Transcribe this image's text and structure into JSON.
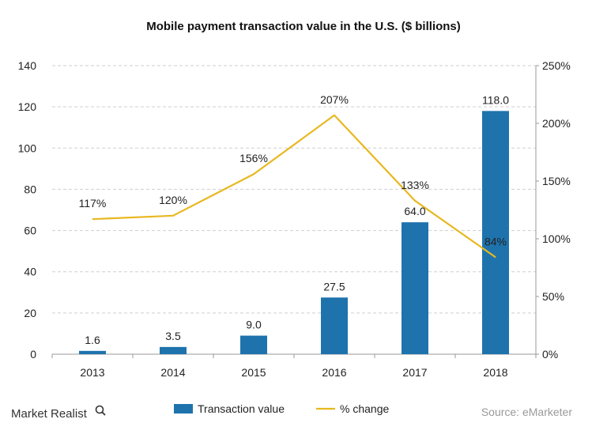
{
  "colors": {
    "bar": "#1e73ad",
    "line": "#e8b820",
    "grid": "#cfcfcf",
    "axis": "#9a9a9a"
  },
  "brand": {
    "name": "Market Realist",
    "icon": "magnifier-icon"
  },
  "source": "Source: eMarketer",
  "chart_data": {
    "type": "bar",
    "title": "Mobile payment transaction value in the U.S. ($ billions)",
    "categories": [
      "2013",
      "2014",
      "2015",
      "2016",
      "2017",
      "2018"
    ],
    "series": [
      {
        "name": "Transaction value",
        "type": "bar",
        "axis": "left",
        "values": [
          1.6,
          3.5,
          9.0,
          27.5,
          64.0,
          118.0
        ],
        "labels": [
          "1.6",
          "3.5",
          "9.0",
          "27.5",
          "64.0",
          "118.0"
        ]
      },
      {
        "name": "% change",
        "type": "line",
        "axis": "right",
        "values": [
          117,
          120,
          156,
          207,
          133,
          84
        ],
        "labels": [
          "117%",
          "120%",
          "156%",
          "207%",
          "133%",
          "84%"
        ]
      }
    ],
    "y_left": {
      "min": 0,
      "max": 140,
      "ticks": [
        0,
        20,
        40,
        60,
        80,
        100,
        120,
        140
      ]
    },
    "y_right": {
      "min": 0,
      "max": 250,
      "ticks": [
        "0%",
        "50%",
        "100%",
        "150%",
        "200%",
        "250%"
      ],
      "tick_values": [
        0,
        50,
        100,
        150,
        200,
        250
      ]
    },
    "grid": true,
    "legend_position": "bottom"
  }
}
